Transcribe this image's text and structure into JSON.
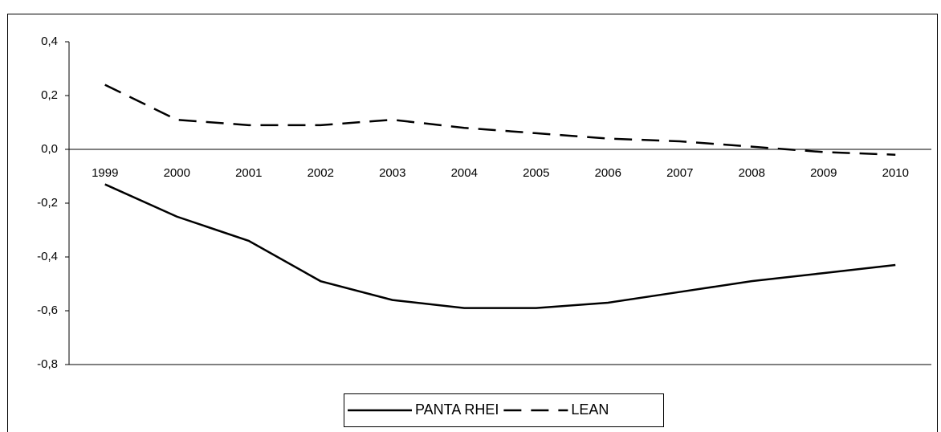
{
  "chart_data": {
    "type": "line",
    "categories": [
      "1999",
      "2000",
      "2001",
      "2002",
      "2003",
      "2004",
      "2005",
      "2006",
      "2007",
      "2008",
      "2009",
      "2010"
    ],
    "series": [
      {
        "name": "PANTA RHEI",
        "color": "#000000",
        "dash": "solid",
        "values": [
          -0.13,
          -0.25,
          -0.34,
          -0.49,
          -0.56,
          -0.59,
          -0.59,
          -0.57,
          -0.53,
          -0.49,
          -0.46,
          -0.43
        ]
      },
      {
        "name": "LEAN",
        "color": "#000000",
        "dash": "dashed",
        "values": [
          0.24,
          0.11,
          0.09,
          0.09,
          0.11,
          0.08,
          0.06,
          0.04,
          0.03,
          0.01,
          -0.01,
          -0.02
        ]
      }
    ],
    "ylim": [
      -0.8,
      0.4
    ],
    "yticks": [
      {
        "value": 0.4,
        "label": "0,4"
      },
      {
        "value": 0.2,
        "label": "0,2"
      },
      {
        "value": 0.0,
        "label": "0,0"
      },
      {
        "value": -0.2,
        "label": "-0,2"
      },
      {
        "value": -0.4,
        "label": "-0,4"
      },
      {
        "value": -0.6,
        "label": "-0,6"
      },
      {
        "value": -0.8,
        "label": "-0,8"
      }
    ],
    "grid": false,
    "legend": "bottom"
  }
}
